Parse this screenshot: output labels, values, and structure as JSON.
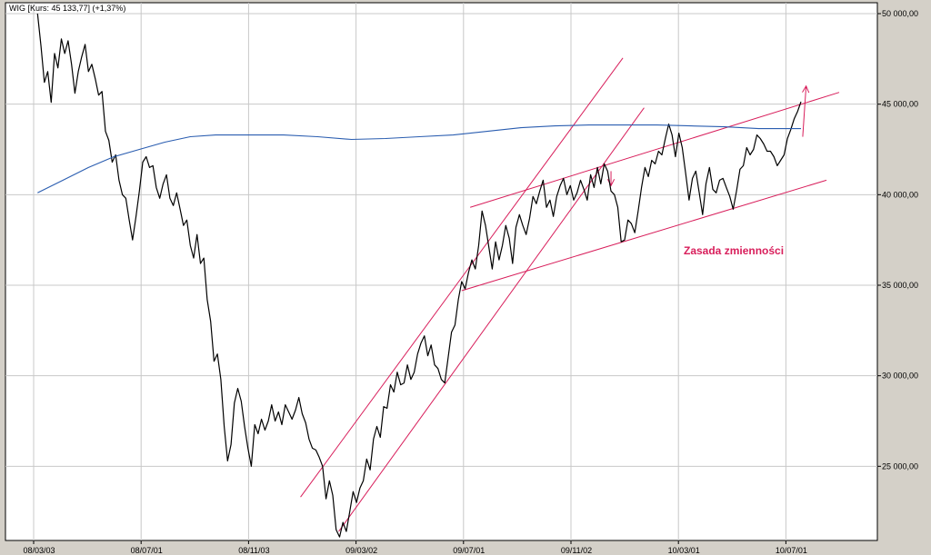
{
  "chart_data": {
    "type": "line",
    "title": "WIG [Kurs: 45 133,77] (+1,37%)",
    "xlabel": "",
    "ylabel": "",
    "x_ticks": [
      "08/03/03",
      "08/07/01",
      "08/11/03",
      "09/03/02",
      "09/07/01",
      "09/11/02",
      "10/03/01",
      "10/07/01"
    ],
    "y_ticks": [
      "50 000,00",
      "45 000,00",
      "40 000,00",
      "35 000,00",
      "30 000,00",
      "25 000,00"
    ],
    "ylim": [
      20000,
      50000
    ],
    "xlim": [
      0,
      1000
    ],
    "y_axis_position": "right",
    "grid": true,
    "annotation": "Zasada zmienności",
    "series": [
      {
        "color": "#000000",
        "points": [
          [
            10,
            50000
          ],
          [
            14,
            48200
          ],
          [
            18,
            46200
          ],
          [
            22,
            46800
          ],
          [
            26,
            45100
          ],
          [
            30,
            47800
          ],
          [
            34,
            47000
          ],
          [
            38,
            48600
          ],
          [
            42,
            47800
          ],
          [
            46,
            48500
          ],
          [
            50,
            47200
          ],
          [
            54,
            45600
          ],
          [
            58,
            46800
          ],
          [
            62,
            47600
          ],
          [
            66,
            48300
          ],
          [
            70,
            46800
          ],
          [
            74,
            47200
          ],
          [
            78,
            46400
          ],
          [
            82,
            45500
          ],
          [
            86,
            45700
          ],
          [
            90,
            43500
          ],
          [
            94,
            43000
          ],
          [
            98,
            41800
          ],
          [
            102,
            42200
          ],
          [
            106,
            40800
          ],
          [
            110,
            40000
          ],
          [
            114,
            39800
          ],
          [
            118,
            38600
          ],
          [
            122,
            37500
          ],
          [
            126,
            38800
          ],
          [
            130,
            40200
          ],
          [
            134,
            41800
          ],
          [
            138,
            42100
          ],
          [
            142,
            41500
          ],
          [
            146,
            41600
          ],
          [
            150,
            40400
          ],
          [
            154,
            39800
          ],
          [
            158,
            40600
          ],
          [
            162,
            41100
          ],
          [
            166,
            39800
          ],
          [
            170,
            39400
          ],
          [
            174,
            40100
          ],
          [
            178,
            39200
          ],
          [
            182,
            38300
          ],
          [
            186,
            38600
          ],
          [
            190,
            37200
          ],
          [
            194,
            36500
          ],
          [
            198,
            37800
          ],
          [
            202,
            36200
          ],
          [
            206,
            36500
          ],
          [
            210,
            34200
          ],
          [
            214,
            33000
          ],
          [
            218,
            30800
          ],
          [
            222,
            31200
          ],
          [
            226,
            29800
          ],
          [
            230,
            27200
          ],
          [
            234,
            25300
          ],
          [
            238,
            26200
          ],
          [
            242,
            28500
          ],
          [
            246,
            29300
          ],
          [
            250,
            28600
          ],
          [
            254,
            27200
          ],
          [
            258,
            26000
          ],
          [
            262,
            25000
          ],
          [
            266,
            27300
          ],
          [
            270,
            26800
          ],
          [
            274,
            27600
          ],
          [
            278,
            27000
          ],
          [
            282,
            27500
          ],
          [
            286,
            28400
          ],
          [
            290,
            27500
          ],
          [
            294,
            28000
          ],
          [
            298,
            27300
          ],
          [
            302,
            28400
          ],
          [
            306,
            28000
          ],
          [
            310,
            27600
          ],
          [
            314,
            28100
          ],
          [
            318,
            28800
          ],
          [
            322,
            27900
          ],
          [
            326,
            27400
          ],
          [
            330,
            26500
          ],
          [
            334,
            26000
          ],
          [
            338,
            25900
          ],
          [
            342,
            25500
          ],
          [
            346,
            25000
          ],
          [
            350,
            23200
          ],
          [
            354,
            24200
          ],
          [
            358,
            23400
          ],
          [
            362,
            21500
          ],
          [
            366,
            21100
          ],
          [
            370,
            21900
          ],
          [
            374,
            21400
          ],
          [
            378,
            22500
          ],
          [
            382,
            23600
          ],
          [
            386,
            23000
          ],
          [
            390,
            23800
          ],
          [
            394,
            24200
          ],
          [
            398,
            25400
          ],
          [
            402,
            24800
          ],
          [
            406,
            26500
          ],
          [
            410,
            27200
          ],
          [
            414,
            26600
          ],
          [
            418,
            28300
          ],
          [
            422,
            28200
          ],
          [
            426,
            29500
          ],
          [
            430,
            29100
          ],
          [
            434,
            30200
          ],
          [
            438,
            29500
          ],
          [
            442,
            29600
          ],
          [
            446,
            30600
          ],
          [
            450,
            29800
          ],
          [
            454,
            30200
          ],
          [
            458,
            31200
          ],
          [
            462,
            31800
          ],
          [
            466,
            32200
          ],
          [
            470,
            31100
          ],
          [
            474,
            31700
          ],
          [
            478,
            30600
          ],
          [
            482,
            30400
          ],
          [
            486,
            29800
          ],
          [
            490,
            29600
          ],
          [
            494,
            31000
          ],
          [
            498,
            32400
          ],
          [
            502,
            32800
          ],
          [
            506,
            34200
          ],
          [
            510,
            35200
          ],
          [
            514,
            34800
          ],
          [
            518,
            35700
          ],
          [
            522,
            36400
          ],
          [
            526,
            35900
          ],
          [
            530,
            37200
          ],
          [
            534,
            39100
          ],
          [
            538,
            38300
          ],
          [
            542,
            37100
          ],
          [
            546,
            35900
          ],
          [
            550,
            37400
          ],
          [
            554,
            36400
          ],
          [
            558,
            37200
          ],
          [
            562,
            38300
          ],
          [
            566,
            37600
          ],
          [
            570,
            36200
          ],
          [
            574,
            38200
          ],
          [
            578,
            38900
          ],
          [
            582,
            38300
          ],
          [
            586,
            37800
          ],
          [
            590,
            38700
          ],
          [
            594,
            39900
          ],
          [
            598,
            39500
          ],
          [
            602,
            40200
          ],
          [
            606,
            40800
          ],
          [
            610,
            39300
          ],
          [
            614,
            39700
          ],
          [
            618,
            38800
          ],
          [
            622,
            39900
          ],
          [
            626,
            40500
          ],
          [
            630,
            40900
          ],
          [
            634,
            40000
          ],
          [
            638,
            40500
          ],
          [
            642,
            39700
          ],
          [
            646,
            40100
          ],
          [
            650,
            40800
          ],
          [
            654,
            40300
          ],
          [
            658,
            39700
          ],
          [
            662,
            41100
          ],
          [
            666,
            40400
          ],
          [
            670,
            41500
          ],
          [
            674,
            40600
          ],
          [
            678,
            41700
          ],
          [
            682,
            41300
          ],
          [
            686,
            40200
          ],
          [
            690,
            40000
          ],
          [
            694,
            39300
          ],
          [
            698,
            37400
          ],
          [
            702,
            37500
          ],
          [
            706,
            38600
          ],
          [
            710,
            38400
          ],
          [
            714,
            37900
          ],
          [
            718,
            39100
          ],
          [
            722,
            40400
          ],
          [
            726,
            41500
          ],
          [
            730,
            41000
          ],
          [
            734,
            41900
          ],
          [
            738,
            41700
          ],
          [
            742,
            42400
          ],
          [
            746,
            42200
          ],
          [
            750,
            43100
          ],
          [
            754,
            43900
          ],
          [
            758,
            43300
          ],
          [
            762,
            42100
          ],
          [
            766,
            43400
          ],
          [
            770,
            42600
          ],
          [
            774,
            41200
          ],
          [
            778,
            39700
          ],
          [
            782,
            40900
          ],
          [
            786,
            41300
          ],
          [
            790,
            40100
          ],
          [
            794,
            38900
          ],
          [
            798,
            40600
          ],
          [
            802,
            41500
          ],
          [
            806,
            40300
          ],
          [
            810,
            40100
          ],
          [
            814,
            40800
          ],
          [
            818,
            40900
          ],
          [
            822,
            40400
          ],
          [
            826,
            39900
          ],
          [
            830,
            39200
          ],
          [
            834,
            40200
          ],
          [
            838,
            41400
          ],
          [
            842,
            41600
          ],
          [
            846,
            42600
          ],
          [
            850,
            42200
          ],
          [
            854,
            42500
          ],
          [
            858,
            43300
          ],
          [
            862,
            43100
          ],
          [
            866,
            42800
          ],
          [
            870,
            42400
          ],
          [
            874,
            42400
          ],
          [
            878,
            42100
          ],
          [
            882,
            41600
          ],
          [
            886,
            41900
          ],
          [
            890,
            42200
          ],
          [
            894,
            43100
          ],
          [
            898,
            43600
          ],
          [
            902,
            44200
          ],
          [
            906,
            44600
          ],
          [
            910,
            45134
          ]
        ]
      },
      {
        "color": "#2a5db0",
        "points": [
          [
            10,
            40100
          ],
          [
            40,
            40800
          ],
          [
            70,
            41500
          ],
          [
            100,
            42100
          ],
          [
            130,
            42500
          ],
          [
            160,
            42900
          ],
          [
            190,
            43200
          ],
          [
            220,
            43300
          ],
          [
            260,
            43300
          ],
          [
            300,
            43300
          ],
          [
            340,
            43200
          ],
          [
            380,
            43050
          ],
          [
            420,
            43100
          ],
          [
            460,
            43200
          ],
          [
            500,
            43300
          ],
          [
            540,
            43500
          ],
          [
            580,
            43700
          ],
          [
            620,
            43800
          ],
          [
            660,
            43850
          ],
          [
            700,
            43850
          ],
          [
            740,
            43850
          ],
          [
            780,
            43800
          ],
          [
            820,
            43750
          ],
          [
            860,
            43650
          ],
          [
            900,
            43650
          ],
          [
            910,
            43650
          ]
        ]
      }
    ],
    "trend_lines": [
      {
        "color": "#d81e5b",
        "from": [
          320,
          23300
        ],
        "to": [
          700,
          47550
        ]
      },
      {
        "color": "#d81e5b",
        "from": [
          365,
          21400
        ],
        "to": [
          725,
          44800
        ]
      },
      {
        "color": "#d81e5b",
        "from": [
          520,
          39300
        ],
        "to": [
          955,
          45650
        ]
      },
      {
        "color": "#d81e5b",
        "from": [
          510,
          34700
        ],
        "to": [
          940,
          40800
        ]
      },
      {
        "color": "#d81e5b",
        "from": [
          686,
          41300
        ],
        "to": [
          686,
          40500
        ]
      },
      {
        "color": "#d81e5b",
        "from": [
          912,
          43200
        ],
        "to": [
          916,
          46000
        ]
      }
    ]
  }
}
